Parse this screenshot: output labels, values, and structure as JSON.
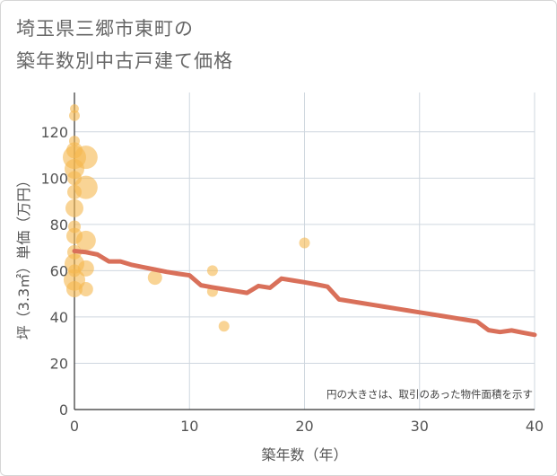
{
  "title_lines": [
    "埼玉県三郷市東町の",
    "築年数別中古戸建て価格"
  ],
  "chart_data": {
    "type": "scatter",
    "title": "埼玉県三郷市東町の築年数別中古戸建て価格",
    "xlabel": "築年数（年）",
    "ylabel": "坪（3.3㎡）単価（万円）",
    "xlim": [
      0,
      40
    ],
    "ylim": [
      0,
      137
    ],
    "xticks": [
      0,
      10,
      20,
      30,
      40
    ],
    "yticks": [
      0,
      20,
      40,
      60,
      80,
      100,
      120
    ],
    "grid": true,
    "note": "円の大きさは、取引のあった物件面積を示す",
    "colors": {
      "bubble": "#f5b84f",
      "line": "#d9705a",
      "grid": "#cfd7df",
      "plot_bg": "#ffffff"
    },
    "scatter_points": [
      {
        "x": 0,
        "y": 130,
        "size": 5
      },
      {
        "x": 0,
        "y": 127,
        "size": 6
      },
      {
        "x": 0,
        "y": 116,
        "size": 6
      },
      {
        "x": 0,
        "y": 112,
        "size": 9
      },
      {
        "x": 0,
        "y": 109,
        "size": 13
      },
      {
        "x": 0,
        "y": 104,
        "size": 11
      },
      {
        "x": 0,
        "y": 100,
        "size": 8
      },
      {
        "x": 0,
        "y": 94,
        "size": 8
      },
      {
        "x": 0,
        "y": 87,
        "size": 10
      },
      {
        "x": 0,
        "y": 79,
        "size": 7
      },
      {
        "x": 0,
        "y": 75,
        "size": 9
      },
      {
        "x": 0,
        "y": 68,
        "size": 8
      },
      {
        "x": 0,
        "y": 63,
        "size": 11
      },
      {
        "x": 0,
        "y": 60,
        "size": 7
      },
      {
        "x": 0,
        "y": 56,
        "size": 12
      },
      {
        "x": 0,
        "y": 52,
        "size": 9
      },
      {
        "x": 1,
        "y": 109,
        "size": 13
      },
      {
        "x": 1,
        "y": 96,
        "size": 13
      },
      {
        "x": 1,
        "y": 73,
        "size": 11
      },
      {
        "x": 1,
        "y": 61,
        "size": 9
      },
      {
        "x": 1,
        "y": 52,
        "size": 8
      },
      {
        "x": 7,
        "y": 57,
        "size": 8
      },
      {
        "x": 12,
        "y": 60,
        "size": 6
      },
      {
        "x": 12,
        "y": 51,
        "size": 6
      },
      {
        "x": 13,
        "y": 36,
        "size": 6
      },
      {
        "x": 20,
        "y": 72,
        "size": 6
      }
    ],
    "trend_line": {
      "x": [
        0,
        1,
        2,
        3,
        4,
        5,
        6,
        7,
        8,
        9,
        10,
        11,
        12,
        13,
        14,
        15,
        16,
        17,
        18,
        19,
        20,
        21,
        22,
        23,
        24,
        25,
        26,
        27,
        28,
        29,
        30,
        31,
        32,
        33,
        34,
        35,
        36,
        37,
        38,
        39,
        40
      ],
      "y": [
        68.5,
        68,
        67,
        64,
        64,
        62.5,
        61.5,
        60.5,
        59.5,
        58.7,
        58,
        53.7,
        52.8,
        52,
        51.2,
        50.4,
        53.4,
        52.6,
        56.6,
        55.8,
        55,
        54.1,
        53.1,
        47.6,
        46.8,
        46,
        45.2,
        44.4,
        43.6,
        42.8,
        42,
        41.2,
        40.4,
        39.6,
        38.8,
        38,
        34.3,
        33.5,
        34.2,
        33.2,
        32.3
      ]
    }
  }
}
